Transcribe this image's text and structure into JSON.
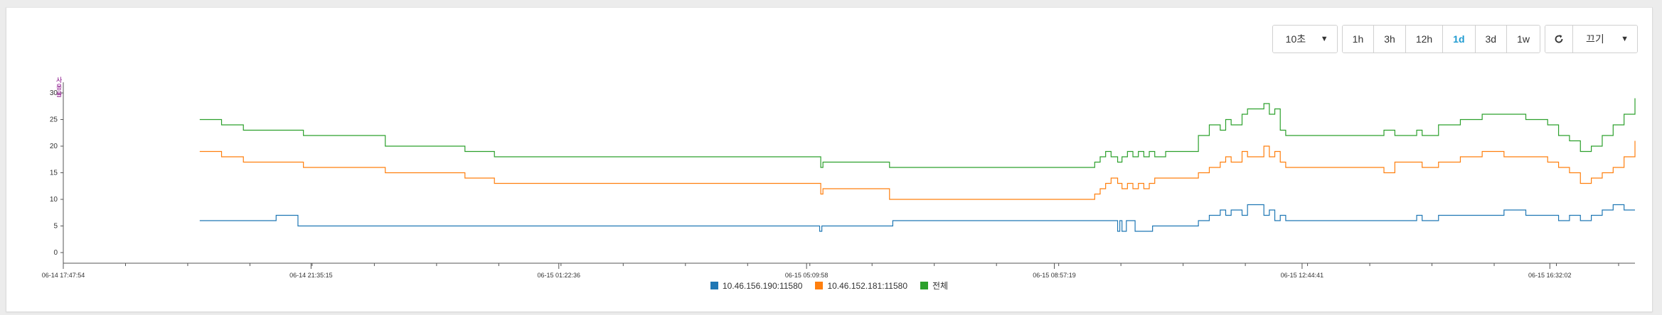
{
  "toolbar": {
    "interval": "10초",
    "ranges": [
      "1h",
      "3h",
      "12h",
      "1d",
      "3d",
      "1w"
    ],
    "active_range": "1d",
    "refresh_icon": "refresh-icon",
    "mode": "끄기"
  },
  "chart_data": {
    "type": "line",
    "ylabel": "사용률",
    "ylim": [
      -2,
      32
    ],
    "yticks": [
      0,
      5,
      10,
      15,
      20,
      25,
      30
    ],
    "x_labels": [
      "06-14 17:47:54",
      "06-14 21:35:15",
      "06-15 01:22:36",
      "06-15 05:09:58",
      "06-15 08:57:19",
      "06-15 12:44:41",
      "06-15 16:32:02"
    ],
    "x_domain": [
      0,
      1440
    ],
    "x_label_positions": [
      0,
      227,
      454,
      681,
      908,
      1135,
      1362
    ],
    "grid": false,
    "legend_position": "bottom",
    "series": [
      {
        "name": "10.46.156.190:11580",
        "color": "#1f77b4",
        "x": [
          125,
          190,
          195,
          215,
          455,
          692,
          693,
          695,
          760,
          962,
          966,
          968,
          970,
          974,
          982,
          998,
          1040,
          1050,
          1060,
          1065,
          1070,
          1080,
          1085,
          1100,
          1105,
          1110,
          1115,
          1120,
          1125,
          1130,
          1200,
          1240,
          1245,
          1260,
          1300,
          1320,
          1340,
          1360,
          1370,
          1380,
          1390,
          1400,
          1410,
          1420,
          1430,
          1440
        ],
        "y": [
          6,
          6,
          7,
          5,
          5,
          5,
          4,
          5,
          6,
          6,
          4,
          6,
          4,
          6,
          4,
          5,
          6,
          7,
          8,
          7,
          8,
          7,
          9,
          7,
          8,
          6,
          7,
          6,
          6,
          6,
          6,
          7,
          6,
          7,
          7,
          8,
          7,
          7,
          6,
          7,
          6,
          7,
          8,
          9,
          8,
          8
        ]
      },
      {
        "name": "10.46.152.181:11580",
        "color": "#ff7f0e",
        "x": [
          125,
          140,
          145,
          150,
          165,
          215,
          220,
          295,
          365,
          368,
          395,
          692,
          694,
          696,
          757,
          940,
          945,
          950,
          955,
          960,
          966,
          970,
          975,
          980,
          985,
          990,
          995,
          1000,
          1010,
          1040,
          1050,
          1060,
          1065,
          1070,
          1080,
          1085,
          1100,
          1105,
          1110,
          1115,
          1120,
          1125,
          1130,
          1200,
          1210,
          1220,
          1240,
          1245,
          1260,
          1280,
          1300,
          1320,
          1340,
          1360,
          1370,
          1380,
          1390,
          1400,
          1410,
          1420,
          1430,
          1440
        ],
        "y": [
          19,
          19,
          18,
          18,
          17,
          17,
          16,
          15,
          15,
          14,
          13,
          13,
          11,
          12,
          10,
          10,
          11,
          12,
          13,
          14,
          13,
          12,
          13,
          12,
          13,
          12,
          13,
          14,
          14,
          15,
          16,
          17,
          18,
          17,
          19,
          18,
          20,
          18,
          19,
          17,
          16,
          16,
          16,
          16,
          15,
          17,
          17,
          16,
          17,
          18,
          19,
          18,
          18,
          17,
          16,
          15,
          13,
          14,
          15,
          16,
          18,
          21
        ]
      },
      {
        "name": "전체",
        "color": "#2ca02c",
        "x": [
          125,
          140,
          145,
          150,
          165,
          215,
          220,
          295,
          365,
          368,
          395,
          692,
          694,
          696,
          757,
          940,
          945,
          950,
          955,
          960,
          966,
          970,
          975,
          980,
          985,
          990,
          995,
          1000,
          1010,
          1040,
          1050,
          1060,
          1065,
          1070,
          1080,
          1085,
          1100,
          1105,
          1110,
          1115,
          1120,
          1125,
          1130,
          1200,
          1210,
          1220,
          1240,
          1245,
          1260,
          1280,
          1300,
          1320,
          1340,
          1360,
          1370,
          1380,
          1390,
          1400,
          1410,
          1420,
          1430,
          1440
        ],
        "y": [
          25,
          25,
          24,
          24,
          23,
          23,
          22,
          20,
          20,
          19,
          18,
          18,
          16,
          17,
          16,
          16,
          17,
          18,
          19,
          18,
          17,
          18,
          19,
          18,
          19,
          18,
          19,
          18,
          19,
          22,
          24,
          23,
          25,
          24,
          26,
          27,
          28,
          26,
          27,
          23,
          22,
          22,
          22,
          22,
          23,
          22,
          23,
          22,
          24,
          25,
          26,
          26,
          25,
          24,
          22,
          21,
          19,
          20,
          22,
          24,
          26,
          29
        ]
      }
    ]
  }
}
